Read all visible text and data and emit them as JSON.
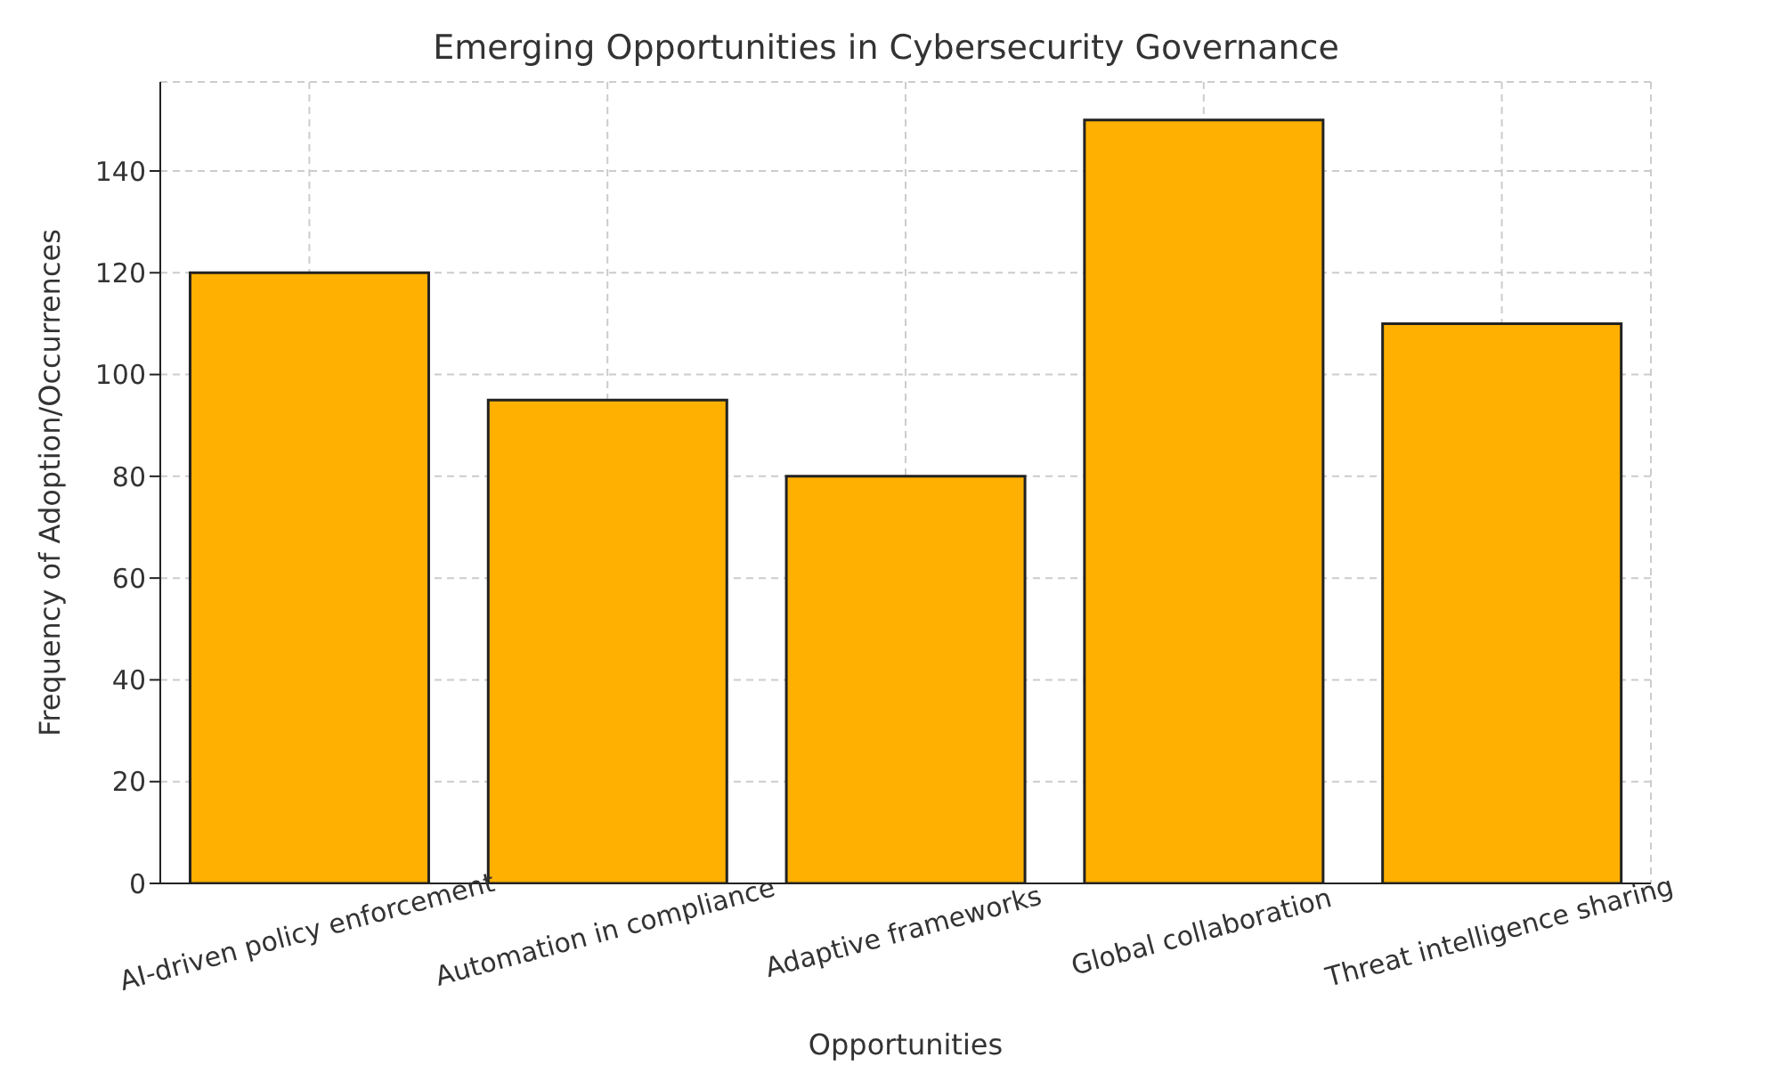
{
  "chart_data": {
    "type": "bar",
    "title": "Emerging Opportunities in Cybersecurity Governance",
    "xlabel": "Opportunities",
    "ylabel": "Frequency of Adoption/Occurrences",
    "categories": [
      "AI-driven policy enforcement",
      "Automation in compliance",
      "Adaptive frameworks",
      "Global collaboration",
      "Threat intelligence sharing"
    ],
    "values": [
      120,
      95,
      80,
      150,
      110
    ],
    "color": "#ffb000",
    "ylim": [
      0,
      157.5
    ],
    "yticks": [
      0,
      20,
      40,
      60,
      80,
      100,
      120,
      140
    ],
    "grid": true
  }
}
